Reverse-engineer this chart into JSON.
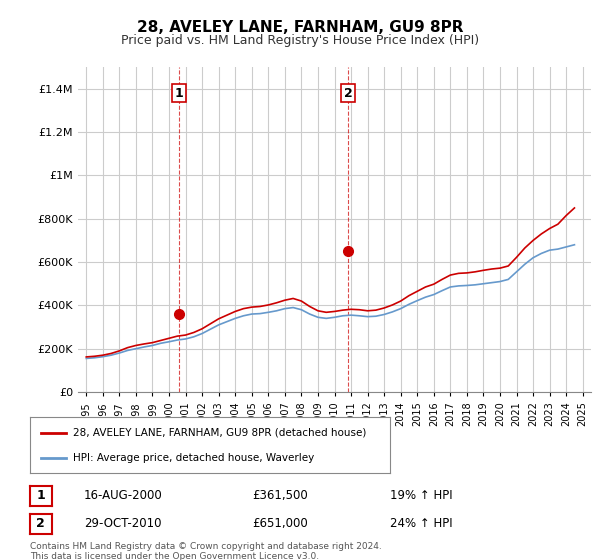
{
  "title": "28, AVELEY LANE, FARNHAM, GU9 8PR",
  "subtitle": "Price paid vs. HM Land Registry's House Price Index (HPI)",
  "legend_line1": "28, AVELEY LANE, FARNHAM, GU9 8PR (detached house)",
  "legend_line2": "HPI: Average price, detached house, Waverley",
  "annotation1_label": "1",
  "annotation1_date": "16-AUG-2000",
  "annotation1_price": "£361,500",
  "annotation1_hpi": "19% ↑ HPI",
  "annotation2_label": "2",
  "annotation2_date": "29-OCT-2010",
  "annotation2_price": "£651,000",
  "annotation2_hpi": "24% ↑ HPI",
  "footer": "Contains HM Land Registry data © Crown copyright and database right 2024.\nThis data is licensed under the Open Government Licence v3.0.",
  "red_color": "#cc0000",
  "blue_color": "#6699cc",
  "background_color": "#ffffff",
  "grid_color": "#cccccc",
  "ylim": [
    0,
    1500000
  ],
  "yticks": [
    0,
    200000,
    400000,
    600000,
    800000,
    1000000,
    1200000,
    1400000
  ],
  "ytick_labels": [
    "£0",
    "£200K",
    "£400K",
    "£600K",
    "£800K",
    "£1M",
    "£1.2M",
    "£1.4M"
  ],
  "sale1_x": 2000.62,
  "sale1_y": 361500,
  "sale2_x": 2010.83,
  "sale2_y": 651000,
  "vline1_x": 2000.62,
  "vline2_x": 2010.83,
  "hpi_years": [
    1995,
    1995.5,
    1996,
    1996.5,
    1997,
    1997.5,
    1998,
    1998.5,
    1999,
    1999.5,
    2000,
    2000.5,
    2001,
    2001.5,
    2002,
    2002.5,
    2003,
    2003.5,
    2004,
    2004.5,
    2005,
    2005.5,
    2006,
    2006.5,
    2007,
    2007.5,
    2008,
    2008.5,
    2009,
    2009.5,
    2010,
    2010.5,
    2011,
    2011.5,
    2012,
    2012.5,
    2013,
    2013.5,
    2014,
    2014.5,
    2015,
    2015.5,
    2016,
    2016.5,
    2017,
    2017.5,
    2018,
    2018.5,
    2019,
    2019.5,
    2020,
    2020.5,
    2021,
    2021.5,
    2022,
    2022.5,
    2023,
    2023.5,
    2024,
    2024.5
  ],
  "hpi_values": [
    155000,
    158000,
    163000,
    170000,
    180000,
    192000,
    200000,
    208000,
    215000,
    225000,
    232000,
    240000,
    245000,
    255000,
    270000,
    290000,
    310000,
    325000,
    340000,
    352000,
    360000,
    362000,
    368000,
    375000,
    385000,
    390000,
    380000,
    360000,
    345000,
    340000,
    345000,
    352000,
    355000,
    352000,
    348000,
    350000,
    358000,
    370000,
    385000,
    405000,
    422000,
    438000,
    450000,
    468000,
    485000,
    490000,
    492000,
    495000,
    500000,
    505000,
    510000,
    520000,
    555000,
    590000,
    620000,
    640000,
    655000,
    660000,
    670000,
    680000
  ],
  "red_years": [
    1995,
    1995.5,
    1996,
    1996.5,
    1997,
    1997.5,
    1998,
    1998.5,
    1999,
    1999.5,
    2000,
    2000.5,
    2001,
    2001.5,
    2002,
    2002.5,
    2003,
    2003.5,
    2004,
    2004.5,
    2005,
    2005.5,
    2006,
    2006.5,
    2007,
    2007.5,
    2008,
    2008.5,
    2009,
    2009.5,
    2010,
    2010.5,
    2011,
    2011.5,
    2012,
    2012.5,
    2013,
    2013.5,
    2014,
    2014.5,
    2015,
    2015.5,
    2016,
    2016.5,
    2017,
    2017.5,
    2018,
    2018.5,
    2019,
    2019.5,
    2020,
    2020.5,
    2021,
    2021.5,
    2022,
    2022.5,
    2023,
    2023.5,
    2024,
    2024.5
  ],
  "red_values": [
    162000,
    165000,
    170000,
    178000,
    190000,
    205000,
    215000,
    222000,
    228000,
    238000,
    248000,
    258000,
    263000,
    275000,
    292000,
    315000,
    338000,
    355000,
    372000,
    385000,
    392000,
    395000,
    402000,
    412000,
    424000,
    432000,
    420000,
    395000,
    375000,
    368000,
    372000,
    378000,
    382000,
    380000,
    375000,
    378000,
    388000,
    402000,
    420000,
    445000,
    465000,
    485000,
    498000,
    520000,
    540000,
    548000,
    550000,
    555000,
    562000,
    568000,
    572000,
    582000,
    622000,
    665000,
    700000,
    730000,
    755000,
    775000,
    815000,
    850000
  ],
  "xlim_left": 1994.5,
  "xlim_right": 2025.5
}
